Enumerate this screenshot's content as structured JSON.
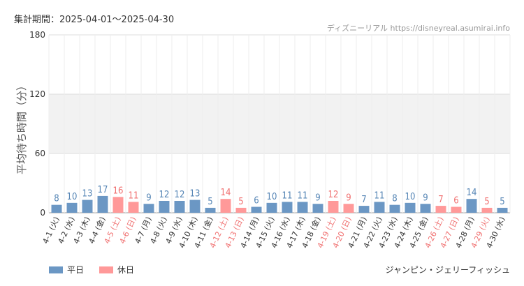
{
  "header": {
    "period": "集計期間：2025-04-01～2025-04-30",
    "brand": "ディズニーリアル https://disneyreal.asumirai.info"
  },
  "legend": {
    "weekday": "平日",
    "holiday": "休日"
  },
  "ride": "ジャンピン・ジェリーフィッシュ",
  "colors": {
    "weekday": "#6b97c4",
    "holiday": "#ff9999",
    "weekday_text": "#5585b5",
    "holiday_text": "#f07070"
  },
  "chart_data": {
    "type": "bar",
    "ylabel": "平均待ち時間（分）",
    "ylim": [
      0,
      180
    ],
    "yticks": [
      0,
      60,
      120,
      180
    ],
    "shaded_band": [
      60,
      120
    ],
    "categories": [
      "4-1 (火)",
      "4-2 (水)",
      "4-3 (木)",
      "4-4 (金)",
      "4-5 (土)",
      "4-6 (日)",
      "4-7 (月)",
      "4-8 (火)",
      "4-9 (水)",
      "4-10 (木)",
      "4-11 (金)",
      "4-12 (土)",
      "4-13 (日)",
      "4-14 (月)",
      "4-15 (火)",
      "4-16 (水)",
      "4-17 (木)",
      "4-18 (金)",
      "4-19 (土)",
      "4-20 (日)",
      "4-21 (月)",
      "4-22 (火)",
      "4-23 (水)",
      "4-24 (木)",
      "4-25 (金)",
      "4-26 (土)",
      "4-27 (日)",
      "4-28 (月)",
      "4-29 (火)",
      "4-30 (水)"
    ],
    "values": [
      8,
      10,
      13,
      17,
      16,
      11,
      9,
      12,
      12,
      13,
      5,
      14,
      5,
      6,
      10,
      11,
      11,
      9,
      12,
      9,
      7,
      11,
      8,
      10,
      9,
      7,
      6,
      14,
      5,
      5
    ],
    "holiday": [
      false,
      false,
      false,
      false,
      true,
      true,
      false,
      false,
      false,
      false,
      false,
      true,
      true,
      false,
      false,
      false,
      false,
      false,
      true,
      true,
      false,
      false,
      false,
      false,
      false,
      true,
      true,
      false,
      true,
      false
    ],
    "series": [
      {
        "name": "平日"
      },
      {
        "name": "休日"
      }
    ],
    "grid": true,
    "legend_position": "bottom-left"
  }
}
